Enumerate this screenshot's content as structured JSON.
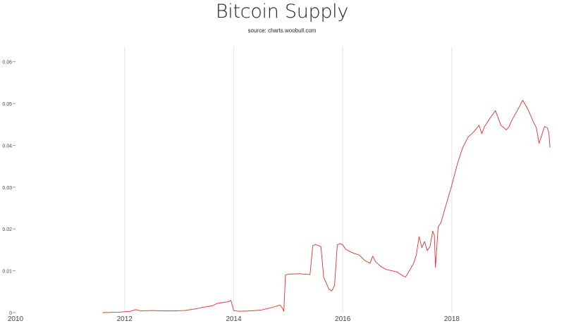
{
  "chart_data": {
    "type": "line",
    "title": "Bitcoin Supply",
    "subtitle": "source: charts.woobull.com",
    "xlabel": "",
    "ylabel": "",
    "xlim": [
      2010,
      2019.85
    ],
    "ylim": [
      0,
      0.065
    ],
    "x_ticks": [
      {
        "value": 2010,
        "label": "2010"
      },
      {
        "value": 2012,
        "label": "2012"
      },
      {
        "value": 2014,
        "label": "2014"
      },
      {
        "value": 2016,
        "label": "2016"
      },
      {
        "value": 2018,
        "label": "2018"
      }
    ],
    "y_ticks": [
      {
        "value": 0,
        "label": "0"
      },
      {
        "value": 0.01,
        "label": "0.01"
      },
      {
        "value": 0.02,
        "label": "0.02"
      },
      {
        "value": 0.03,
        "label": "0.03"
      },
      {
        "value": 0.04,
        "label": "0.04"
      },
      {
        "value": 0.05,
        "label": "0.05"
      },
      {
        "value": 0.06,
        "label": "0.06"
      }
    ],
    "grid": {
      "vertical": true,
      "horizontal": false
    },
    "line_color": "#e0312e",
    "series": [
      {
        "x": [
          2011.6,
          2011.9,
          2012.1,
          2012.2,
          2012.3,
          2012.5,
          2012.7,
          2012.9,
          2013.1,
          2013.3,
          2013.45,
          2013.6,
          2013.7,
          2013.8,
          2013.9,
          2013.95,
          2014.0,
          2014.1,
          2014.3,
          2014.5,
          2014.7,
          2014.85,
          2014.9,
          2014.92,
          2014.95,
          2015.0,
          2015.2,
          2015.4,
          2015.45,
          2015.5,
          2015.6,
          2015.65,
          2015.75,
          2015.8,
          2015.85,
          2015.9,
          2015.95,
          2016.0,
          2016.05,
          2016.1,
          2016.2,
          2016.3,
          2016.4,
          2016.5,
          2016.55,
          2016.6,
          2016.7,
          2016.8,
          2017.0,
          2017.1,
          2017.15,
          2017.2,
          2017.3,
          2017.35,
          2017.4,
          2017.45,
          2017.5,
          2017.55,
          2017.6,
          2017.65,
          2017.68,
          2017.7,
          2017.75,
          2017.8,
          2017.9,
          2018.0,
          2018.1,
          2018.2,
          2018.3,
          2018.4,
          2018.5,
          2018.55,
          2018.6,
          2018.7,
          2018.8,
          2018.9,
          2019.0,
          2019.05,
          2019.1,
          2019.2,
          2019.3,
          2019.4,
          2019.45,
          2019.5,
          2019.55,
          2019.6,
          2019.65,
          2019.7,
          2019.75,
          2019.78,
          2019.8
        ],
        "y": [
          0,
          0.0001,
          0.0003,
          0.0007,
          0.0004,
          0.0005,
          0.0004,
          0.0004,
          0.0005,
          0.0009,
          0.0013,
          0.0016,
          0.0022,
          0.0024,
          0.0026,
          0.0029,
          0.0005,
          0.0003,
          0.0004,
          0.0006,
          0.0012,
          0.0018,
          0.0009,
          0.0003,
          0.009,
          0.0092,
          0.0093,
          0.0091,
          0.016,
          0.0163,
          0.0158,
          0.0085,
          0.0055,
          0.0052,
          0.0065,
          0.0162,
          0.0165,
          0.0162,
          0.0152,
          0.0148,
          0.0142,
          0.0138,
          0.0125,
          0.0118,
          0.0135,
          0.0122,
          0.011,
          0.0103,
          0.0097,
          0.0088,
          0.0085,
          0.0095,
          0.0118,
          0.0138,
          0.0182,
          0.0155,
          0.017,
          0.0148,
          0.0158,
          0.0195,
          0.0185,
          0.0108,
          0.0205,
          0.0215,
          0.026,
          0.0305,
          0.0355,
          0.0395,
          0.042,
          0.0432,
          0.0448,
          0.0428,
          0.0445,
          0.0465,
          0.0483,
          0.0448,
          0.0437,
          0.0445,
          0.046,
          0.0483,
          0.0508,
          0.0485,
          0.047,
          0.0455,
          0.0442,
          0.0405,
          0.0425,
          0.0445,
          0.0442,
          0.043,
          0.0395
        ]
      }
    ]
  }
}
